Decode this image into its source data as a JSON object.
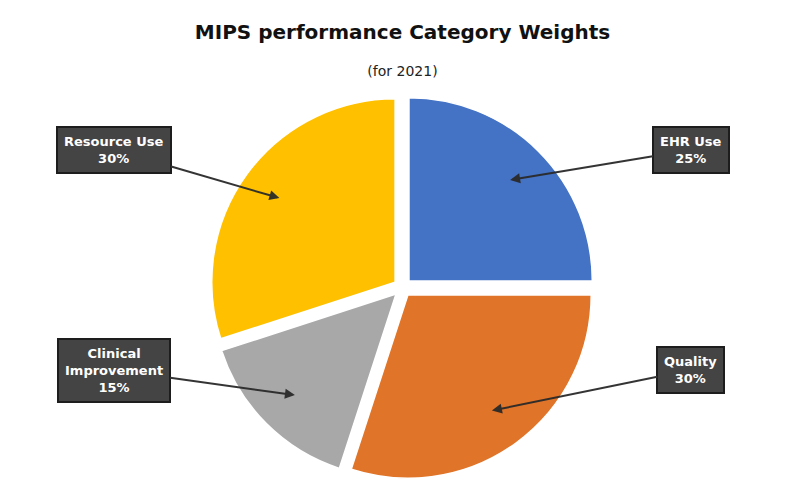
{
  "chart_data": {
    "type": "pie",
    "title": "MIPS performance Category Weights",
    "subtitle": "(for 2021)",
    "categories": [
      "EHR Use",
      "Quality",
      "Clinical\nImprovement",
      "Resource Use"
    ],
    "values": [
      25,
      30,
      15,
      30
    ],
    "value_labels": [
      "25%",
      "30%",
      "15%",
      "30%"
    ],
    "colors": [
      "#4472C4",
      "#E07428",
      "#A8A8A8",
      "#FFC000"
    ]
  }
}
